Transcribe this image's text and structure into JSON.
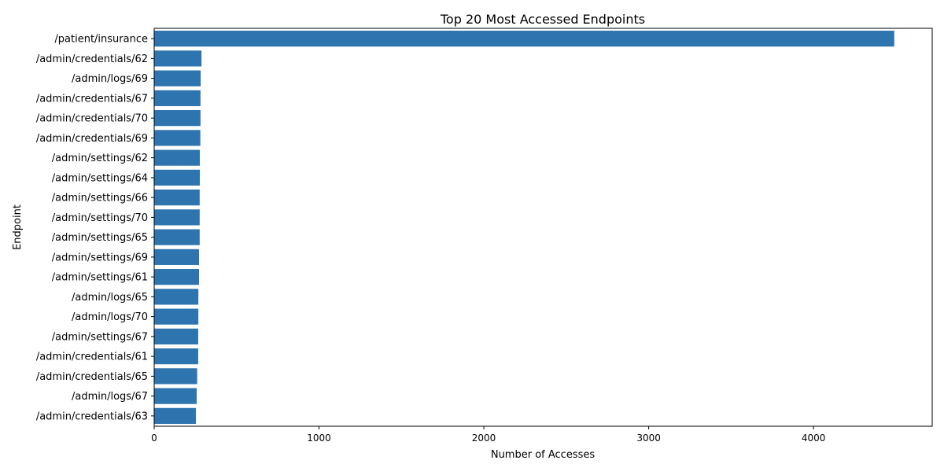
{
  "chart_data": {
    "type": "bar",
    "orientation": "horizontal",
    "title": "Top 20 Most Accessed Endpoints",
    "xlabel": "Number of Accesses",
    "ylabel": "Endpoint",
    "xlim": [
      0,
      4720
    ],
    "xticks": [
      0,
      1000,
      2000,
      3000,
      4000
    ],
    "grid": false,
    "bar_color": "#2e75b0",
    "categories": [
      "/patient/insurance",
      "/admin/credentials/62",
      "/admin/logs/69",
      "/admin/credentials/67",
      "/admin/credentials/70",
      "/admin/credentials/69",
      "/admin/settings/62",
      "/admin/settings/64",
      "/admin/settings/66",
      "/admin/settings/70",
      "/admin/settings/65",
      "/admin/settings/69",
      "/admin/settings/61",
      "/admin/logs/65",
      "/admin/logs/70",
      "/admin/settings/67",
      "/admin/credentials/61",
      "/admin/credentials/65",
      "/admin/logs/67",
      "/admin/credentials/63"
    ],
    "values": [
      4490,
      287,
      282,
      281,
      281,
      280,
      277,
      277,
      276,
      276,
      276,
      272,
      272,
      268,
      268,
      267,
      267,
      261,
      258,
      253
    ]
  }
}
